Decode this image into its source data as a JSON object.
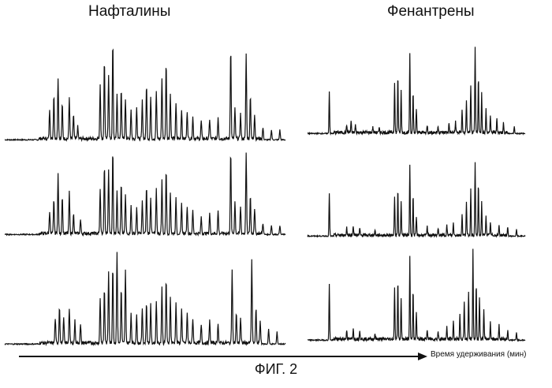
{
  "figure": {
    "label": "ФИГ. 2",
    "x_axis_label": "Время удерживания (мин)",
    "column_titles": [
      "Нафталины",
      "Фенантрены"
    ]
  },
  "chart_data": [
    {
      "type": "line",
      "title": "Нафталины",
      "row": 1,
      "xlabel": "Время удерживания (мин)",
      "ylabel": "",
      "x_range": [
        0,
        100
      ],
      "peaks": [
        {
          "x": 16,
          "h": 0.3
        },
        {
          "x": 17.5,
          "h": 0.45
        },
        {
          "x": 19,
          "h": 0.62
        },
        {
          "x": 20.5,
          "h": 0.35
        },
        {
          "x": 23,
          "h": 0.42
        },
        {
          "x": 24.5,
          "h": 0.25
        },
        {
          "x": 26,
          "h": 0.12
        },
        {
          "x": 34,
          "h": 0.55
        },
        {
          "x": 35.5,
          "h": 0.8
        },
        {
          "x": 37,
          "h": 0.65
        },
        {
          "x": 38.5,
          "h": 0.98
        },
        {
          "x": 40,
          "h": 0.45
        },
        {
          "x": 41.5,
          "h": 0.52
        },
        {
          "x": 43,
          "h": 0.4
        },
        {
          "x": 45,
          "h": 0.3
        },
        {
          "x": 47,
          "h": 0.33
        },
        {
          "x": 49,
          "h": 0.38
        },
        {
          "x": 50.5,
          "h": 0.55
        },
        {
          "x": 52,
          "h": 0.42
        },
        {
          "x": 54,
          "h": 0.48
        },
        {
          "x": 56,
          "h": 0.62
        },
        {
          "x": 57.5,
          "h": 0.78
        },
        {
          "x": 59,
          "h": 0.45
        },
        {
          "x": 61,
          "h": 0.35
        },
        {
          "x": 63,
          "h": 0.3
        },
        {
          "x": 65,
          "h": 0.28
        },
        {
          "x": 67,
          "h": 0.22
        },
        {
          "x": 70,
          "h": 0.18
        },
        {
          "x": 73,
          "h": 0.2
        },
        {
          "x": 76,
          "h": 0.22
        },
        {
          "x": 80.5,
          "h": 0.92
        },
        {
          "x": 82,
          "h": 0.3
        },
        {
          "x": 84,
          "h": 0.25
        },
        {
          "x": 86,
          "h": 0.85
        },
        {
          "x": 87.5,
          "h": 0.45
        },
        {
          "x": 89,
          "h": 0.25
        },
        {
          "x": 92,
          "h": 0.12
        },
        {
          "x": 95,
          "h": 0.1
        },
        {
          "x": 98,
          "h": 0.1
        }
      ]
    },
    {
      "type": "line",
      "title": "Нафталины",
      "row": 2,
      "xlabel": "Время удерживания (мин)",
      "ylabel": "",
      "x_range": [
        0,
        100
      ],
      "peaks": [
        {
          "x": 16,
          "h": 0.25
        },
        {
          "x": 17.5,
          "h": 0.38
        },
        {
          "x": 19,
          "h": 0.65
        },
        {
          "x": 20.5,
          "h": 0.42
        },
        {
          "x": 23,
          "h": 0.45
        },
        {
          "x": 24.5,
          "h": 0.22
        },
        {
          "x": 27,
          "h": 0.15
        },
        {
          "x": 34,
          "h": 0.48
        },
        {
          "x": 35.5,
          "h": 0.75
        },
        {
          "x": 37,
          "h": 0.7
        },
        {
          "x": 38.5,
          "h": 0.92
        },
        {
          "x": 40,
          "h": 0.48
        },
        {
          "x": 41.5,
          "h": 0.55
        },
        {
          "x": 43,
          "h": 0.42
        },
        {
          "x": 45,
          "h": 0.3
        },
        {
          "x": 47,
          "h": 0.28
        },
        {
          "x": 49,
          "h": 0.35
        },
        {
          "x": 50.5,
          "h": 0.52
        },
        {
          "x": 52,
          "h": 0.4
        },
        {
          "x": 54,
          "h": 0.48
        },
        {
          "x": 56,
          "h": 0.58
        },
        {
          "x": 57.5,
          "h": 0.72
        },
        {
          "x": 59,
          "h": 0.45
        },
        {
          "x": 61,
          "h": 0.38
        },
        {
          "x": 63,
          "h": 0.32
        },
        {
          "x": 65,
          "h": 0.3
        },
        {
          "x": 67,
          "h": 0.25
        },
        {
          "x": 70,
          "h": 0.18
        },
        {
          "x": 73,
          "h": 0.22
        },
        {
          "x": 76,
          "h": 0.25
        },
        {
          "x": 80.5,
          "h": 0.9
        },
        {
          "x": 82,
          "h": 0.35
        },
        {
          "x": 84,
          "h": 0.3
        },
        {
          "x": 86,
          "h": 0.88
        },
        {
          "x": 87.5,
          "h": 0.42
        },
        {
          "x": 89,
          "h": 0.28
        },
        {
          "x": 92,
          "h": 0.12
        },
        {
          "x": 95,
          "h": 0.1
        },
        {
          "x": 98,
          "h": 0.1
        }
      ]
    },
    {
      "type": "line",
      "title": "Нафталины",
      "row": 3,
      "xlabel": "Время удерживания (мин)",
      "ylabel": "",
      "x_range": [
        0,
        100
      ],
      "peaks": [
        {
          "x": 18,
          "h": 0.25
        },
        {
          "x": 19.5,
          "h": 0.38
        },
        {
          "x": 21,
          "h": 0.25
        },
        {
          "x": 23,
          "h": 0.35
        },
        {
          "x": 25,
          "h": 0.22
        },
        {
          "x": 27,
          "h": 0.18
        },
        {
          "x": 34,
          "h": 0.45
        },
        {
          "x": 35.5,
          "h": 0.55
        },
        {
          "x": 37,
          "h": 0.72
        },
        {
          "x": 38.5,
          "h": 0.78
        },
        {
          "x": 40,
          "h": 0.92
        },
        {
          "x": 41.5,
          "h": 0.55
        },
        {
          "x": 43,
          "h": 0.72
        },
        {
          "x": 45,
          "h": 0.3
        },
        {
          "x": 47,
          "h": 0.28
        },
        {
          "x": 49,
          "h": 0.35
        },
        {
          "x": 50.5,
          "h": 0.4
        },
        {
          "x": 52,
          "h": 0.38
        },
        {
          "x": 54,
          "h": 0.42
        },
        {
          "x": 56,
          "h": 0.55
        },
        {
          "x": 57.5,
          "h": 0.65
        },
        {
          "x": 59,
          "h": 0.45
        },
        {
          "x": 61,
          "h": 0.4
        },
        {
          "x": 63,
          "h": 0.35
        },
        {
          "x": 65,
          "h": 0.3
        },
        {
          "x": 67,
          "h": 0.25
        },
        {
          "x": 70,
          "h": 0.18
        },
        {
          "x": 73,
          "h": 0.22
        },
        {
          "x": 76,
          "h": 0.2
        },
        {
          "x": 81,
          "h": 0.75
        },
        {
          "x": 82.5,
          "h": 0.3
        },
        {
          "x": 84,
          "h": 0.25
        },
        {
          "x": 88,
          "h": 0.82
        },
        {
          "x": 89.5,
          "h": 0.35
        },
        {
          "x": 91,
          "h": 0.22
        },
        {
          "x": 94,
          "h": 0.15
        },
        {
          "x": 97,
          "h": 0.12
        }
      ]
    },
    {
      "type": "line",
      "title": "Фенантрены",
      "row": 1,
      "xlabel": "Время удерживания (мин)",
      "ylabel": "",
      "x_range": [
        0,
        100
      ],
      "peaks": [
        {
          "x": 10,
          "h": 0.45
        },
        {
          "x": 18,
          "h": 0.08
        },
        {
          "x": 20,
          "h": 0.12
        },
        {
          "x": 22,
          "h": 0.08
        },
        {
          "x": 30,
          "h": 0.06
        },
        {
          "x": 33,
          "h": 0.05
        },
        {
          "x": 40,
          "h": 0.55
        },
        {
          "x": 41.5,
          "h": 0.62
        },
        {
          "x": 43,
          "h": 0.45
        },
        {
          "x": 47,
          "h": 0.85
        },
        {
          "x": 48.5,
          "h": 0.42
        },
        {
          "x": 50,
          "h": 0.25
        },
        {
          "x": 55,
          "h": 0.08
        },
        {
          "x": 60,
          "h": 0.07
        },
        {
          "x": 65,
          "h": 0.1
        },
        {
          "x": 68,
          "h": 0.12
        },
        {
          "x": 71,
          "h": 0.25
        },
        {
          "x": 73,
          "h": 0.35
        },
        {
          "x": 75,
          "h": 0.5
        },
        {
          "x": 77,
          "h": 0.92
        },
        {
          "x": 78.5,
          "h": 0.6
        },
        {
          "x": 80,
          "h": 0.42
        },
        {
          "x": 82,
          "h": 0.25
        },
        {
          "x": 84,
          "h": 0.18
        },
        {
          "x": 87,
          "h": 0.15
        },
        {
          "x": 90,
          "h": 0.1
        },
        {
          "x": 95,
          "h": 0.08
        }
      ]
    },
    {
      "type": "line",
      "title": "Фенантрены",
      "row": 2,
      "xlabel": "Время удерживания (мин)",
      "ylabel": "",
      "x_range": [
        0,
        100
      ],
      "peaks": [
        {
          "x": 10,
          "h": 0.52
        },
        {
          "x": 18,
          "h": 0.1
        },
        {
          "x": 21,
          "h": 0.12
        },
        {
          "x": 24,
          "h": 0.08
        },
        {
          "x": 31,
          "h": 0.06
        },
        {
          "x": 40,
          "h": 0.48
        },
        {
          "x": 41.5,
          "h": 0.55
        },
        {
          "x": 43,
          "h": 0.4
        },
        {
          "x": 47,
          "h": 0.85
        },
        {
          "x": 48.5,
          "h": 0.48
        },
        {
          "x": 50,
          "h": 0.22
        },
        {
          "x": 55,
          "h": 0.1
        },
        {
          "x": 60,
          "h": 0.08
        },
        {
          "x": 64,
          "h": 0.12
        },
        {
          "x": 67,
          "h": 0.15
        },
        {
          "x": 71,
          "h": 0.25
        },
        {
          "x": 73,
          "h": 0.4
        },
        {
          "x": 75,
          "h": 0.55
        },
        {
          "x": 77,
          "h": 0.88
        },
        {
          "x": 78.5,
          "h": 0.62
        },
        {
          "x": 80,
          "h": 0.4
        },
        {
          "x": 82,
          "h": 0.25
        },
        {
          "x": 84,
          "h": 0.15
        },
        {
          "x": 88,
          "h": 0.12
        },
        {
          "x": 92,
          "h": 0.1
        },
        {
          "x": 96,
          "h": 0.08
        }
      ]
    },
    {
      "type": "line",
      "title": "Фенантрены",
      "row": 3,
      "xlabel": "Время удерживания (мин)",
      "ylabel": "",
      "x_range": [
        0,
        100
      ],
      "peaks": [
        {
          "x": 10,
          "h": 0.58
        },
        {
          "x": 18,
          "h": 0.1
        },
        {
          "x": 21,
          "h": 0.12
        },
        {
          "x": 24,
          "h": 0.1
        },
        {
          "x": 31,
          "h": 0.06
        },
        {
          "x": 40,
          "h": 0.55
        },
        {
          "x": 41.5,
          "h": 0.62
        },
        {
          "x": 43,
          "h": 0.42
        },
        {
          "x": 47,
          "h": 0.85
        },
        {
          "x": 48.5,
          "h": 0.52
        },
        {
          "x": 50,
          "h": 0.28
        },
        {
          "x": 55,
          "h": 0.1
        },
        {
          "x": 60,
          "h": 0.08
        },
        {
          "x": 64,
          "h": 0.12
        },
        {
          "x": 67,
          "h": 0.18
        },
        {
          "x": 70,
          "h": 0.25
        },
        {
          "x": 72,
          "h": 0.4
        },
        {
          "x": 74,
          "h": 0.5
        },
        {
          "x": 76,
          "h": 0.92
        },
        {
          "x": 77.5,
          "h": 0.58
        },
        {
          "x": 79,
          "h": 0.45
        },
        {
          "x": 81,
          "h": 0.3
        },
        {
          "x": 84,
          "h": 0.18
        },
        {
          "x": 88,
          "h": 0.15
        },
        {
          "x": 92,
          "h": 0.1
        },
        {
          "x": 96,
          "h": 0.08
        }
      ]
    }
  ]
}
